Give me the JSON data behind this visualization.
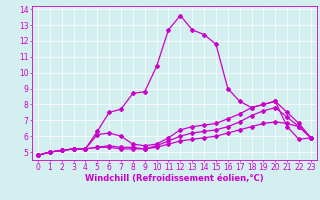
{
  "x": [
    0,
    1,
    2,
    3,
    4,
    5,
    6,
    7,
    8,
    9,
    10,
    11,
    12,
    13,
    14,
    15,
    16,
    17,
    18,
    19,
    20,
    21,
    22,
    23
  ],
  "line1": [
    4.8,
    5.0,
    5.1,
    5.2,
    5.2,
    5.3,
    5.3,
    5.2,
    5.2,
    5.2,
    5.3,
    5.5,
    5.7,
    5.8,
    5.9,
    6.0,
    6.2,
    6.4,
    6.6,
    6.8,
    6.9,
    6.8,
    6.6,
    5.9
  ],
  "line2": [
    4.8,
    5.0,
    5.1,
    5.2,
    5.2,
    5.3,
    5.4,
    5.3,
    5.3,
    5.2,
    5.4,
    5.7,
    6.0,
    6.2,
    6.3,
    6.4,
    6.6,
    6.9,
    7.3,
    7.6,
    7.8,
    7.2,
    6.6,
    5.9
  ],
  "line3": [
    4.8,
    5.0,
    5.1,
    5.2,
    5.2,
    6.1,
    6.2,
    6.0,
    5.5,
    5.4,
    5.5,
    5.9,
    6.4,
    6.6,
    6.7,
    6.8,
    7.1,
    7.4,
    7.8,
    8.0,
    8.2,
    7.5,
    6.8,
    5.9
  ],
  "line4": [
    4.8,
    5.0,
    5.1,
    5.2,
    5.2,
    6.3,
    7.5,
    7.7,
    8.7,
    8.8,
    10.4,
    12.7,
    13.6,
    12.7,
    12.4,
    11.8,
    9.0,
    8.2,
    7.8,
    8.0,
    8.2,
    6.6,
    5.8,
    5.9
  ],
  "xlim_min": -0.5,
  "xlim_max": 23.5,
  "ylim_min": 4.5,
  "ylim_max": 14.2,
  "xticks": [
    0,
    1,
    2,
    3,
    4,
    5,
    6,
    7,
    8,
    9,
    10,
    11,
    12,
    13,
    14,
    15,
    16,
    17,
    18,
    19,
    20,
    21,
    22,
    23
  ],
  "yticks": [
    5,
    6,
    7,
    8,
    9,
    10,
    11,
    12,
    13,
    14
  ],
  "xlabel": "Windchill (Refroidissement éolien,°C)",
  "line_color": "#cc00cc",
  "bg_color": "#d4efef",
  "marker": "D",
  "marker_size": 2.0,
  "linewidth": 0.9,
  "tick_fontsize": 5.5,
  "xlabel_fontsize": 6.0
}
